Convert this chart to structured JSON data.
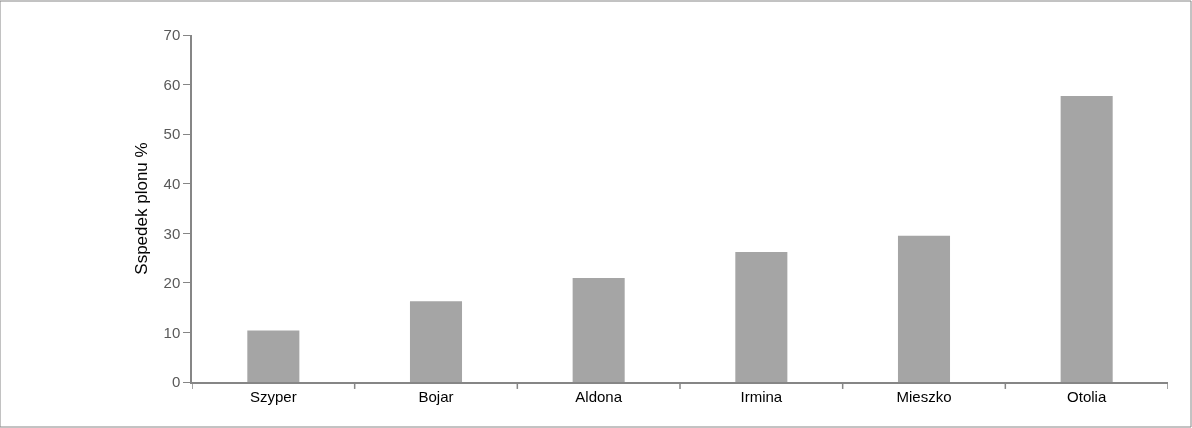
{
  "chart_data": {
    "type": "bar",
    "ylabel": "Sspedek plonu %",
    "categories": [
      "Szyper",
      "Bojar",
      "Aldona",
      "Irmina",
      "Mieszko",
      "Otolia"
    ],
    "values": [
      10.4,
      16.3,
      21.0,
      26.2,
      29.5,
      57.7
    ],
    "color": "#a5a5a5",
    "ylim": [
      0,
      70
    ],
    "yticks": [
      0,
      10,
      20,
      30,
      40,
      50,
      60,
      70
    ]
  }
}
